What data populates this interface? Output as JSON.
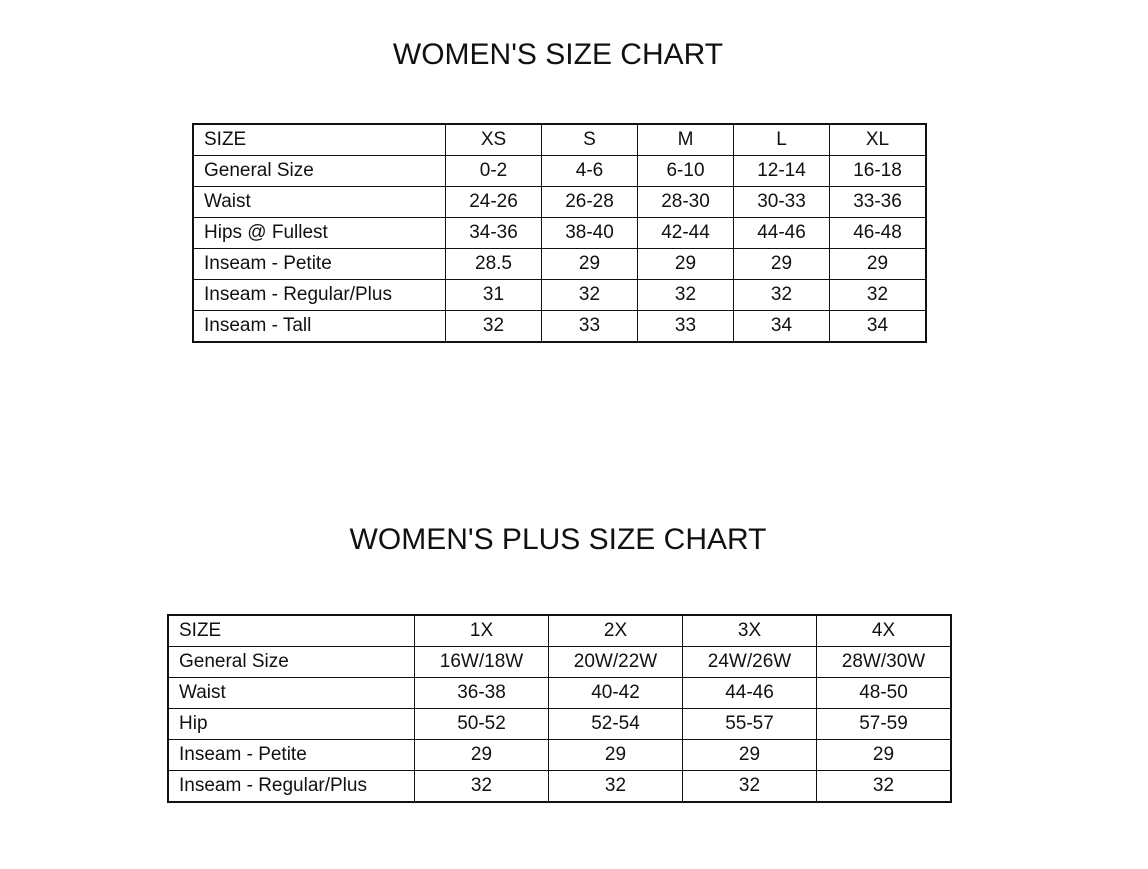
{
  "womens": {
    "title": "WOMEN'S SIZE CHART",
    "rows": [
      {
        "label": "SIZE",
        "values": [
          "XS",
          "S",
          "M",
          "L",
          "XL"
        ]
      },
      {
        "label": "General Size",
        "values": [
          "0-2",
          "4-6",
          "6-10",
          "12-14",
          "16-18"
        ]
      },
      {
        "label": "Waist",
        "values": [
          "24-26",
          "26-28",
          "28-30",
          "30-33",
          "33-36"
        ]
      },
      {
        "label": "Hips @ Fullest",
        "values": [
          "34-36",
          "38-40",
          "42-44",
          "44-46",
          "46-48"
        ]
      },
      {
        "label": "Inseam - Petite",
        "values": [
          "28.5",
          "29",
          "29",
          "29",
          "29"
        ]
      },
      {
        "label": "Inseam - Regular/Plus",
        "values": [
          "31",
          "32",
          "32",
          "32",
          "32"
        ]
      },
      {
        "label": "Inseam - Tall",
        "values": [
          "32",
          "33",
          "33",
          "34",
          "34"
        ]
      }
    ]
  },
  "womens_plus": {
    "title": "WOMEN'S PLUS SIZE CHART",
    "rows": [
      {
        "label": "SIZE",
        "values": [
          "1X",
          "2X",
          "3X",
          "4X"
        ]
      },
      {
        "label": "General Size",
        "values": [
          "16W/18W",
          "20W/22W",
          "24W/26W",
          "28W/30W"
        ]
      },
      {
        "label": "Waist",
        "values": [
          "36-38",
          "40-42",
          "44-46",
          "48-50"
        ]
      },
      {
        "label": "Hip",
        "values": [
          "50-52",
          "52-54",
          "55-57",
          "57-59"
        ]
      },
      {
        "label": "Inseam - Petite",
        "values": [
          "29",
          "29",
          "29",
          "29"
        ]
      },
      {
        "label": "Inseam - Regular/Plus",
        "values": [
          "32",
          "32",
          "32",
          "32"
        ]
      }
    ]
  }
}
